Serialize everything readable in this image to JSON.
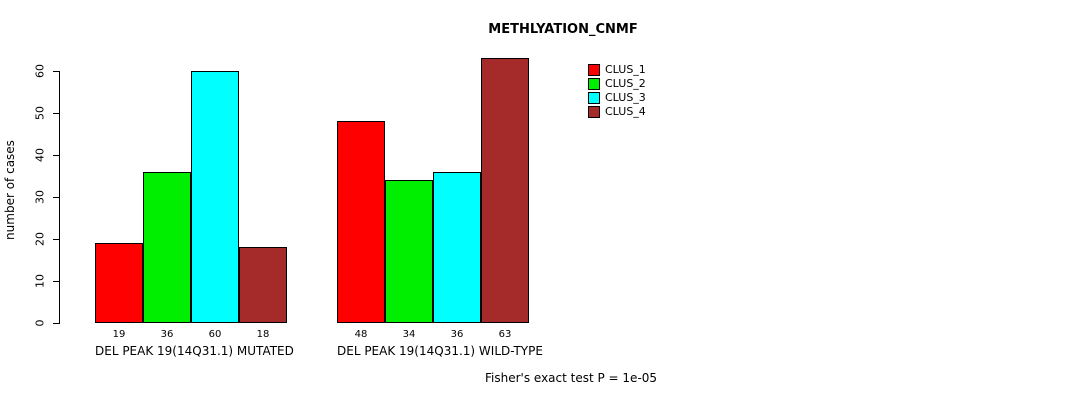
{
  "title": "METHLYATION_CNMF",
  "chart_data": {
    "type": "bar",
    "title": "METHLYATION_CNMF",
    "xlabel": "",
    "ylabel": "number of cases",
    "ylim": [
      0,
      60
    ],
    "yticks": [
      0,
      10,
      20,
      30,
      40,
      50,
      60
    ],
    "grid": false,
    "legend_position": "top-right",
    "series_names": [
      "CLUS_1",
      "CLUS_2",
      "CLUS_3",
      "CLUS_4"
    ],
    "colors": [
      "#FF0000",
      "#00EE00",
      "#00FFFF",
      "#A52A2A"
    ],
    "groups": [
      {
        "label": "DEL PEAK 19(14Q31.1) MUTATED",
        "values": [
          19,
          36,
          60,
          18
        ]
      },
      {
        "label": "DEL PEAK 19(14Q31.1) WILD-TYPE",
        "values": [
          48,
          34,
          36,
          63
        ]
      }
    ],
    "annotation": "Fisher's exact test P = 1e-05"
  },
  "legend": {
    "items": [
      {
        "label": "CLUS_1",
        "color": "#FF0000"
      },
      {
        "label": "CLUS_2",
        "color": "#00EE00"
      },
      {
        "label": "CLUS_3",
        "color": "#00FFFF"
      },
      {
        "label": "CLUS_4",
        "color": "#A52A2A"
      }
    ]
  },
  "footer": "Fisher's exact test P = 1e-05"
}
